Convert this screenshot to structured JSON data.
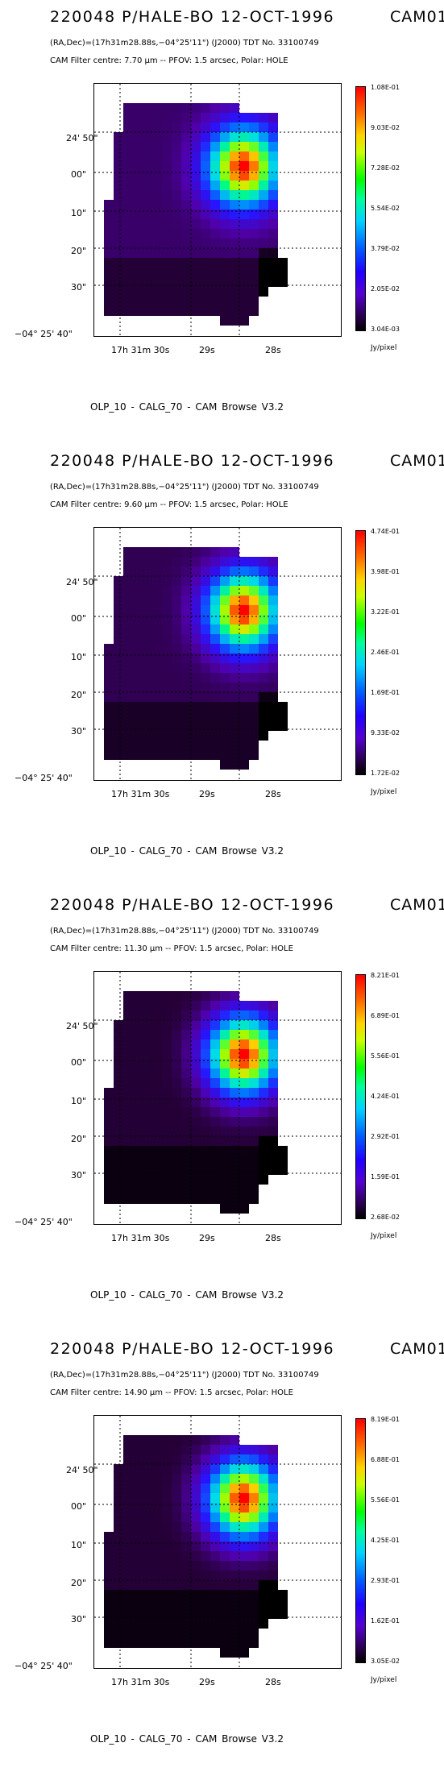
{
  "panels": [
    {
      "title": "220048 P/HALE-BO 12-OCT-1996",
      "instrument": "CAM01",
      "coords": "(RA,Dec)=(17h31m28.88s,−04°25'11\") (J2000) TDT No. 33100749",
      "filter": "CAM  Filter  centre:  7.70 µm --   PFOV:  1.5 arcsec, Polar: HOLE",
      "colorbar_ticks": [
        "1.08E-01",
        "9.03E-02",
        "7.28E-02",
        "5.54E-02",
        "3.79E-02",
        "2.05E-02",
        "3.04E-03"
      ],
      "unit": "Jy/pixel",
      "y_ticks": [
        "24' 50\"",
        "00\"",
        "10\"",
        "20\"",
        "30\"",
        "−04° 25' 40\""
      ],
      "x_ticks": [
        "17h 31m 30s",
        "29s",
        "28s"
      ],
      "footer": "OLP_10   - CALG_70   - CAM Browse V3.2",
      "image": {
        "peak_fraction": 1.0,
        "background_fraction": 0.12
      }
    },
    {
      "title": "220048 P/HALE-BO 12-OCT-1996",
      "instrument": "CAM01",
      "coords": "(RA,Dec)=(17h31m28.88s,−04°25'11\") (J2000) TDT No. 33100749",
      "filter": "CAM  Filter  centre:  9.60 µm --   PFOV:  1.5 arcsec, Polar: HOLE",
      "colorbar_ticks": [
        "4.74E-01",
        "3.98E-01",
        "3.22E-01",
        "2.46E-01",
        "1.69E-01",
        "9.33E-02",
        "1.72E-02"
      ],
      "unit": "Jy/pixel",
      "y_ticks": [
        "24' 50\"",
        "00\"",
        "10\"",
        "20\"",
        "30\"",
        "−04° 25' 40\""
      ],
      "x_ticks": [
        "17h 31m 30s",
        "29s",
        "28s"
      ],
      "footer": "OLP_10   - CALG_70   - CAM Browse V3.2",
      "image": {
        "peak_fraction": 1.0,
        "background_fraction": 0.1
      }
    },
    {
      "title": "220048 P/HALE-BO 12-OCT-1996",
      "instrument": "CAM01",
      "coords": "(RA,Dec)=(17h31m28.88s,−04°25'11\") (J2000) TDT No. 33100749",
      "filter": "CAM  Filter  centre: 11.30 µm --   PFOV:  1.5 arcsec, Polar: HOLE",
      "colorbar_ticks": [
        "8.21E-01",
        "6.89E-01",
        "5.56E-01",
        "4.24E-01",
        "2.92E-01",
        "1.59E-01",
        "2.68E-02"
      ],
      "unit": "Jy/pixel",
      "y_ticks": [
        "24' 50\"",
        "00\"",
        "10\"",
        "20\"",
        "30\"",
        "−04° 25' 40\""
      ],
      "x_ticks": [
        "17h 31m 30s",
        "29s",
        "28s"
      ],
      "footer": "OLP_10   - CALG_70   - CAM Browse V3.2",
      "image": {
        "peak_fraction": 1.0,
        "background_fraction": 0.07
      }
    },
    {
      "title": "220048 P/HALE-BO 12-OCT-1996",
      "instrument": "CAM01",
      "coords": "(RA,Dec)=(17h31m28.88s,−04°25'11\") (J2000) TDT No. 33100749",
      "filter": "CAM  Filter  centre: 14.90 µm --   PFOV:  1.5 arcsec, Polar: HOLE",
      "colorbar_ticks": [
        "8.19E-01",
        "6.88E-01",
        "5.56E-01",
        "4.25E-01",
        "2.93E-01",
        "1.62E-01",
        "3.05E-02"
      ],
      "unit": "Jy/pixel",
      "y_ticks": [
        "24' 50\"",
        "00\"",
        "10\"",
        "20\"",
        "30\"",
        "−04° 25' 40\""
      ],
      "x_ticks": [
        "17h 31m 30s",
        "29s",
        "28s"
      ],
      "footer": "OLP_10   - CALG_70   - CAM Browse V3.2",
      "image": {
        "peak_fraction": 1.0,
        "background_fraction": 0.07
      }
    }
  ]
}
